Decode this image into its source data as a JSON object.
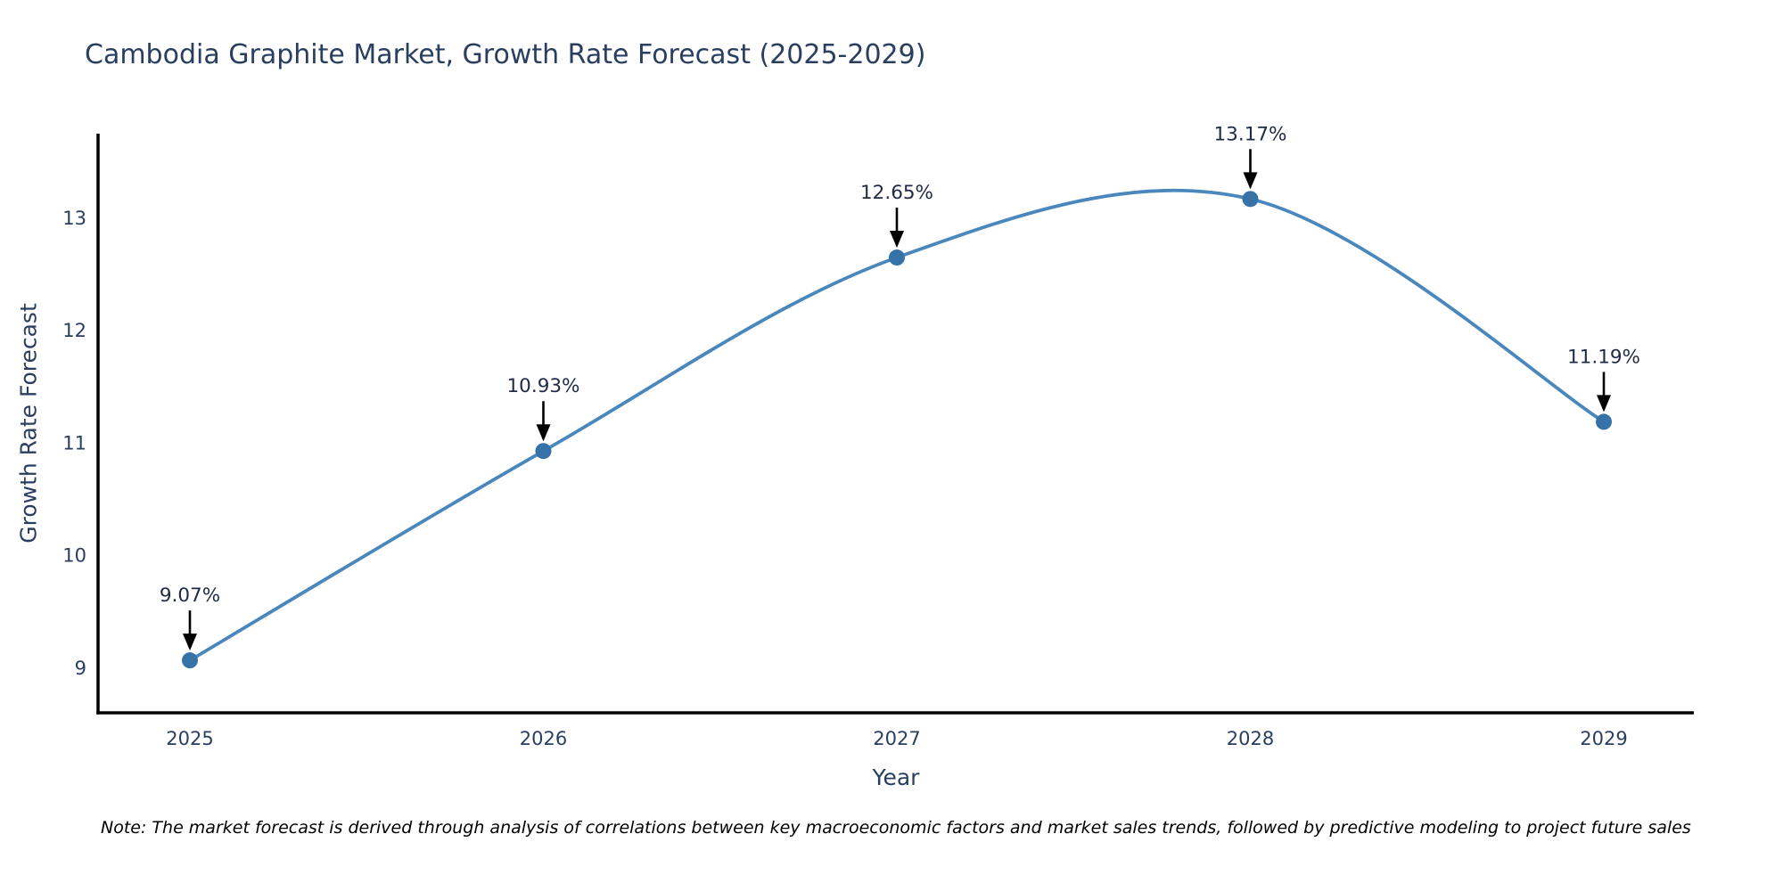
{
  "chart_data": {
    "type": "line",
    "title": "Cambodia Graphite Market, Growth Rate Forecast (2025-2029)",
    "xlabel": "Year",
    "ylabel": "Growth Rate Forecast",
    "x": [
      2025,
      2026,
      2027,
      2028,
      2029
    ],
    "y": [
      9.07,
      10.93,
      12.65,
      13.17,
      11.19
    ],
    "point_labels": [
      "9.07%",
      "10.93%",
      "12.65%",
      "13.17%",
      "11.19%"
    ],
    "xticks": [
      "2025",
      "2026",
      "2027",
      "2028",
      "2029"
    ],
    "yticks": [
      9,
      10,
      11,
      12,
      13
    ],
    "ylim": [
      8.6,
      13.75
    ],
    "line_shape": "spline",
    "grid": false,
    "legend": "none",
    "colors": {
      "line": "#4a87bd",
      "marker": "#3672a8",
      "axis": "#000000",
      "title": "#2a3f5f",
      "tick": "#2a3f5f",
      "annotation": "#1f2a44",
      "arrow": "#000000"
    },
    "note": "Note: The market forecast is derived through analysis of correlations between key macroeconomic factors and market sales trends, followed by predictive modeling to project future sales"
  }
}
